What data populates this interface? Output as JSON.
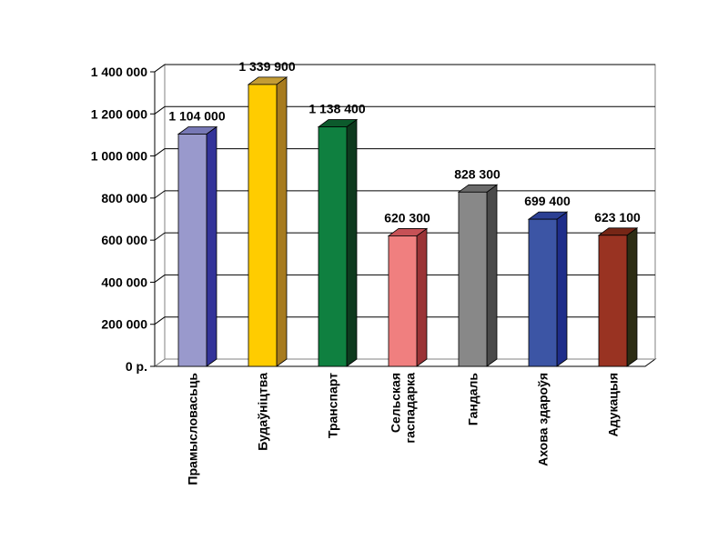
{
  "chart_data": {
    "type": "bar",
    "categories": [
      [
        "Прамысловасьць"
      ],
      [
        "Будаўніцтва"
      ],
      [
        "Транспарт"
      ],
      [
        "Сельская",
        "гаспадарка"
      ],
      [
        "Гандаль"
      ],
      [
        "Ахова здароўя"
      ],
      [
        "Адукацыя"
      ]
    ],
    "values": [
      1104000,
      1339900,
      1138400,
      620300,
      828300,
      699400,
      623100
    ],
    "value_labels": [
      "1 104 000",
      "1 339 900",
      "1 138 400",
      "620 300",
      "828 300",
      "699 400",
      "623 100"
    ],
    "bar_colors": [
      "#9999CC",
      "#FFCC00",
      "#0F8040",
      "#F07F7F",
      "#888888",
      "#3C55A5",
      "#993322"
    ],
    "bar_side_colors": [
      "#333399",
      "#A77B1E",
      "#0E3A1E",
      "#9A3336",
      "#4A4A4A",
      "#1E2D8A",
      "#2D2D14"
    ],
    "bar_top_colors": [
      "#7778B5",
      "#C49C35",
      "#0C5A2C",
      "#C65156",
      "#6B6B6B",
      "#2B3F93",
      "#762616"
    ],
    "y_ticks": [
      0,
      200000,
      400000,
      600000,
      800000,
      1000000,
      1200000,
      1400000
    ],
    "y_tick_labels": [
      "0 р.",
      "200 000",
      "400 000",
      "600 000",
      "800 000",
      "1 000 000",
      "1 200 000",
      "1 400 000"
    ],
    "ylim": [
      0,
      1400000
    ],
    "grid": true,
    "legend": "none",
    "title": "",
    "xlabel": "",
    "ylabel": ""
  }
}
